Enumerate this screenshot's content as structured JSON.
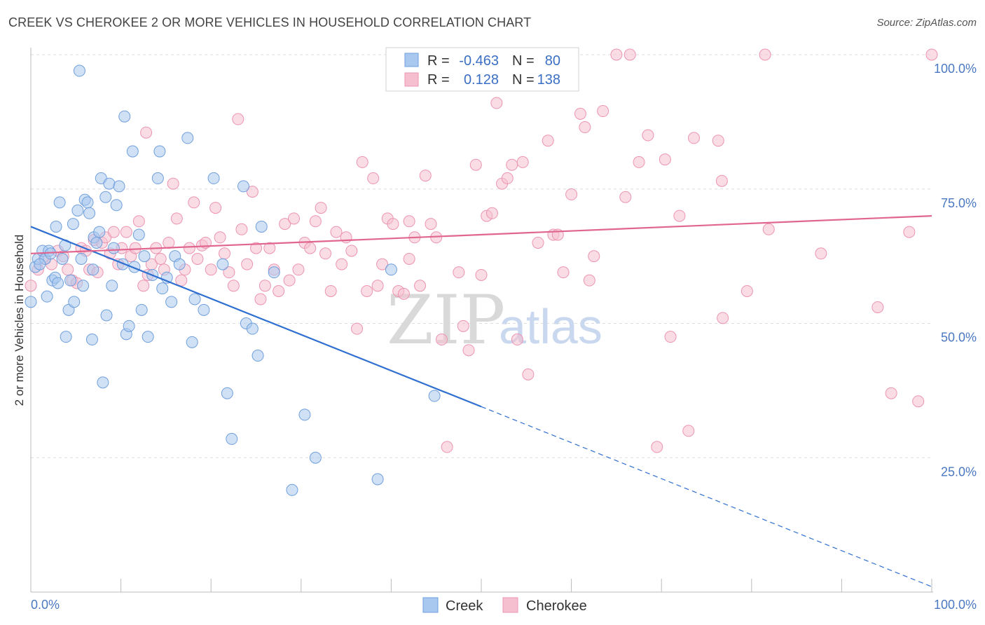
{
  "header": {
    "title": "CREEK VS CHEROKEE 2 OR MORE VEHICLES IN HOUSEHOLD CORRELATION CHART",
    "source": "Source: ZipAtlas.com"
  },
  "watermark": {
    "part1": "ZIP",
    "part2": "atlas"
  },
  "legend": {
    "creek": {
      "r_label": "R =",
      "r_value": "-0.463",
      "n_label": "N =",
      "n_value": "80"
    },
    "cherokee": {
      "r_label": "R =",
      "r_value": "0.128",
      "n_label": "N =",
      "n_value": "138"
    }
  },
  "colors": {
    "creek_fill": "#a9c8ef",
    "creek_stroke": "#6f9fdc",
    "creek_line": "#2f6fd0",
    "cherokee_fill": "#f5bfd0",
    "cherokee_stroke": "#ec94b2",
    "cherokee_line": "#e06690",
    "tick_text": "#4a78c2",
    "grid": "#dddddd"
  },
  "chart_data": {
    "type": "scatter",
    "title": "CREEK VS CHEROKEE 2 OR MORE VEHICLES IN HOUSEHOLD CORRELATION CHART",
    "xlabel": "",
    "ylabel": "2 or more Vehicles in Household",
    "xlim": [
      0,
      100
    ],
    "ylim": [
      0,
      100
    ],
    "x_tick_labels": [
      "0.0%",
      "100.0%"
    ],
    "y_ticks": [
      25,
      50,
      75,
      100
    ],
    "y_tick_labels": [
      "25.0%",
      "50.0%",
      "75.0%",
      "100.0%"
    ],
    "grid": true,
    "legend_position": "bottom",
    "series": [
      {
        "name": "Creek",
        "r": -0.463,
        "n": 80,
        "trend": {
          "x0": 0,
          "y0": 68,
          "x1": 100,
          "y1": 1,
          "solid_until_x": 50
        },
        "points": [
          [
            0,
            54
          ],
          [
            0.5,
            60.5
          ],
          [
            0.8,
            62
          ],
          [
            1.3,
            63.5
          ],
          [
            1.6,
            62
          ],
          [
            1.8,
            55
          ],
          [
            2.0,
            63.5
          ],
          [
            2.4,
            58
          ],
          [
            2.7,
            58.5
          ],
          [
            2.8,
            68
          ],
          [
            3.2,
            72.5
          ],
          [
            3.5,
            62
          ],
          [
            3.8,
            64.5
          ],
          [
            3.9,
            47.5
          ],
          [
            4.2,
            52.5
          ],
          [
            4.7,
            68.5
          ],
          [
            4.8,
            54
          ],
          [
            5.2,
            71
          ],
          [
            5.4,
            97
          ],
          [
            5.6,
            62
          ],
          [
            5.8,
            57
          ],
          [
            6.0,
            73
          ],
          [
            6.3,
            72.5
          ],
          [
            6.5,
            70.5
          ],
          [
            6.8,
            47
          ],
          [
            7.0,
            66
          ],
          [
            7.3,
            65
          ],
          [
            7.6,
            67
          ],
          [
            7.8,
            77
          ],
          [
            8.0,
            39
          ],
          [
            8.3,
            73.5
          ],
          [
            8.4,
            51.5
          ],
          [
            8.7,
            76
          ],
          [
            9.0,
            57
          ],
          [
            9.5,
            72
          ],
          [
            9.8,
            75.5
          ],
          [
            10.2,
            61
          ],
          [
            10.4,
            88.5
          ],
          [
            10.6,
            48
          ],
          [
            10.9,
            49.5
          ],
          [
            11.3,
            82
          ],
          [
            11.5,
            60.5
          ],
          [
            12.0,
            66.5
          ],
          [
            12.3,
            52.5
          ],
          [
            12.6,
            62.5
          ],
          [
            13.0,
            47.5
          ],
          [
            13.5,
            59
          ],
          [
            14.1,
            77
          ],
          [
            14.3,
            82
          ],
          [
            14.6,
            56.5
          ],
          [
            15.1,
            58.5
          ],
          [
            15.6,
            54
          ],
          [
            16.0,
            62.5
          ],
          [
            16.5,
            61
          ],
          [
            17.4,
            84.5
          ],
          [
            17.9,
            46.5
          ],
          [
            18.2,
            54.5
          ],
          [
            19.2,
            52.5
          ],
          [
            20.3,
            77
          ],
          [
            21.3,
            61
          ],
          [
            21.8,
            37
          ],
          [
            22.3,
            28.5
          ],
          [
            23.6,
            75.5
          ],
          [
            23.9,
            50
          ],
          [
            24.6,
            49
          ],
          [
            25.2,
            44
          ],
          [
            25.6,
            68
          ],
          [
            27.0,
            59.5
          ],
          [
            30.4,
            33
          ],
          [
            31.6,
            25
          ],
          [
            29.0,
            19
          ],
          [
            38.5,
            21
          ],
          [
            40.0,
            60
          ],
          [
            44.8,
            36.5
          ],
          [
            1.0,
            61
          ],
          [
            2.2,
            63
          ],
          [
            3.0,
            57.5
          ],
          [
            4.4,
            58
          ],
          [
            6.9,
            60
          ],
          [
            9.2,
            64
          ]
        ]
      },
      {
        "name": "Cherokee",
        "r": 0.128,
        "n": 138,
        "trend": {
          "x0": 0,
          "y0": 63,
          "x1": 100,
          "y1": 70
        },
        "points": [
          [
            0,
            57
          ],
          [
            0.8,
            60
          ],
          [
            1.5,
            62
          ],
          [
            2.3,
            61
          ],
          [
            3.0,
            63.5
          ],
          [
            3.6,
            62.5
          ],
          [
            4.1,
            60
          ],
          [
            4.6,
            58
          ],
          [
            5.1,
            57.5
          ],
          [
            5.6,
            64
          ],
          [
            6.1,
            63.5
          ],
          [
            6.5,
            60
          ],
          [
            7.0,
            65.5
          ],
          [
            7.4,
            59.5
          ],
          [
            7.9,
            65
          ],
          [
            8.3,
            66
          ],
          [
            8.8,
            63
          ],
          [
            9.2,
            67
          ],
          [
            9.7,
            61
          ],
          [
            10.1,
            64
          ],
          [
            10.6,
            67
          ],
          [
            11.1,
            62.5
          ],
          [
            11.6,
            64
          ],
          [
            12.0,
            69
          ],
          [
            12.5,
            57
          ],
          [
            13.0,
            59
          ],
          [
            13.4,
            61
          ],
          [
            13.9,
            64
          ],
          [
            14.4,
            62
          ],
          [
            14.8,
            60
          ],
          [
            15.3,
            65
          ],
          [
            15.8,
            76
          ],
          [
            16.2,
            69.5
          ],
          [
            16.7,
            58
          ],
          [
            17.1,
            60
          ],
          [
            17.6,
            64
          ],
          [
            18.1,
            72.5
          ],
          [
            18.5,
            62
          ],
          [
            19.0,
            64.5
          ],
          [
            19.4,
            65
          ],
          [
            20.0,
            60
          ],
          [
            20.5,
            71.5
          ],
          [
            21.0,
            66
          ],
          [
            21.5,
            63
          ],
          [
            22.0,
            59.5
          ],
          [
            22.5,
            57
          ],
          [
            23.0,
            88
          ],
          [
            23.4,
            67.5
          ],
          [
            24.0,
            61
          ],
          [
            24.6,
            74.5
          ],
          [
            25.0,
            64
          ],
          [
            25.5,
            54.5
          ],
          [
            26.0,
            57
          ],
          [
            26.5,
            64
          ],
          [
            27.0,
            60
          ],
          [
            27.5,
            56
          ],
          [
            28.2,
            68.5
          ],
          [
            28.7,
            58
          ],
          [
            29.2,
            69.5
          ],
          [
            29.7,
            60
          ],
          [
            30.4,
            65
          ],
          [
            31.0,
            64
          ],
          [
            31.6,
            69
          ],
          [
            32.2,
            71.5
          ],
          [
            32.7,
            63
          ],
          [
            33.3,
            56
          ],
          [
            33.9,
            67
          ],
          [
            34.5,
            61
          ],
          [
            35.0,
            66
          ],
          [
            35.6,
            63.5
          ],
          [
            36.2,
            49
          ],
          [
            36.8,
            80
          ],
          [
            37.3,
            56
          ],
          [
            38.0,
            77
          ],
          [
            38.5,
            57
          ],
          [
            39.0,
            61
          ],
          [
            39.6,
            69.5
          ],
          [
            40.2,
            68.5
          ],
          [
            40.8,
            56
          ],
          [
            41.4,
            55.5
          ],
          [
            42.0,
            62
          ],
          [
            42.6,
            66
          ],
          [
            43.2,
            57
          ],
          [
            43.8,
            77.5
          ],
          [
            44.4,
            68.5
          ],
          [
            45.0,
            66
          ],
          [
            45.6,
            47
          ],
          [
            46.2,
            27
          ],
          [
            47.5,
            59.5
          ],
          [
            48.0,
            49.5
          ],
          [
            48.6,
            45
          ],
          [
            49.4,
            79.5
          ],
          [
            50.0,
            59
          ],
          [
            50.6,
            70
          ],
          [
            51.2,
            70.5
          ],
          [
            51.7,
            91
          ],
          [
            52.3,
            76
          ],
          [
            52.9,
            77
          ],
          [
            53.4,
            79.5
          ],
          [
            54.0,
            47
          ],
          [
            54.6,
            80
          ],
          [
            55.2,
            40.5
          ],
          [
            56.3,
            65
          ],
          [
            57.4,
            84
          ],
          [
            58.0,
            66.5
          ],
          [
            58.5,
            66.5
          ],
          [
            59.1,
            59.5
          ],
          [
            60.0,
            74
          ],
          [
            61.0,
            89
          ],
          [
            61.5,
            86.5
          ],
          [
            62.5,
            62.5
          ],
          [
            63.5,
            89.5
          ],
          [
            65.0,
            100
          ],
          [
            66.0,
            73.5
          ],
          [
            66.5,
            100
          ],
          [
            67.5,
            80
          ],
          [
            68.5,
            85
          ],
          [
            69.5,
            27
          ],
          [
            70.4,
            80.5
          ],
          [
            71.0,
            47.5
          ],
          [
            72.0,
            70
          ],
          [
            73.0,
            30
          ],
          [
            73.6,
            84.5
          ],
          [
            76.3,
            84
          ],
          [
            76.8,
            51
          ],
          [
            76.7,
            76.5
          ],
          [
            79.5,
            56
          ],
          [
            81.5,
            100
          ],
          [
            81.9,
            67.5
          ],
          [
            87.7,
            63
          ],
          [
            94.0,
            53
          ],
          [
            95.5,
            37
          ],
          [
            97.5,
            67
          ],
          [
            98.5,
            35.5
          ],
          [
            100,
            100
          ],
          [
            12.8,
            85.5
          ],
          [
            42.0,
            69
          ],
          [
            62.0,
            58
          ]
        ]
      }
    ],
    "annotations": []
  }
}
